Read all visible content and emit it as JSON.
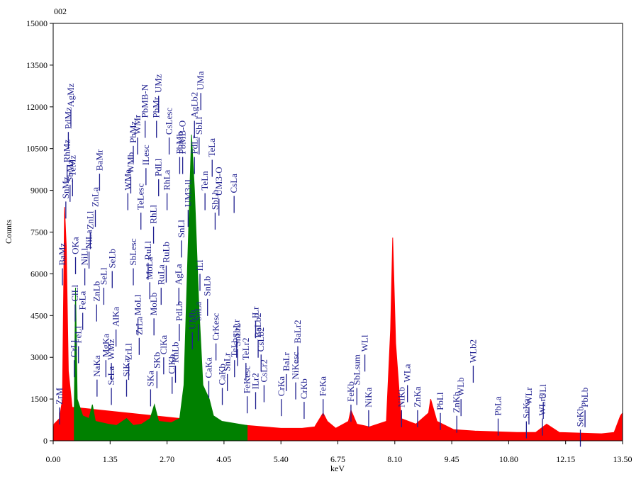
{
  "chart_data": {
    "type": "spectrum",
    "title": "002",
    "xlabel": "keV",
    "ylabel": "Counts",
    "xlim": [
      0,
      13.5
    ],
    "ylim": [
      0,
      15000
    ],
    "xticks": [
      {
        "value": 0,
        "label": "0.00"
      },
      {
        "value": 1.35,
        "label": "1.35"
      },
      {
        "value": 2.7,
        "label": "2.70"
      },
      {
        "value": 4.05,
        "label": "4.05"
      },
      {
        "value": 5.4,
        "label": "5.40"
      },
      {
        "value": 6.75,
        "label": "6.75"
      },
      {
        "value": 8.1,
        "label": "8.10"
      },
      {
        "value": 9.45,
        "label": "9.45"
      },
      {
        "value": 10.8,
        "label": "10.80"
      },
      {
        "value": 12.15,
        "label": "12.15"
      },
      {
        "value": 13.5,
        "label": "13.50"
      }
    ],
    "yticks": [
      0,
      1500,
      3000,
      4500,
      6000,
      7500,
      9000,
      10500,
      12000,
      13500,
      15000
    ],
    "series": [
      {
        "color": "#ff0000",
        "x": [
          0,
          0.02,
          0.15,
          0.22,
          0.27,
          0.31,
          0.36,
          0.45,
          0.5,
          4.6,
          5.0,
          5.4,
          5.9,
          6.2,
          6.4,
          6.5,
          6.7,
          7.0,
          7.06,
          7.2,
          7.5,
          7.9,
          8.0,
          8.05,
          8.12,
          8.25,
          8.6,
          8.9,
          8.95,
          9.1,
          9.5,
          10.0,
          11.0,
          11.44,
          11.7,
          12.0,
          13.0,
          13.3,
          13.45,
          13.5
        ],
        "values": [
          0,
          600,
          800,
          1500,
          8400,
          7000,
          2500,
          1200,
          1200,
          550,
          500,
          450,
          450,
          500,
          1000,
          700,
          450,
          700,
          1100,
          600,
          500,
          700,
          4000,
          7300,
          3500,
          800,
          600,
          1000,
          1500,
          700,
          400,
          350,
          300,
          300,
          600,
          300,
          250,
          300,
          900,
          1000
        ]
      },
      {
        "color": "#008000",
        "x": [
          0.5,
          0.53,
          0.57,
          0.7,
          0.85,
          0.93,
          1.0,
          1.3,
          1.5,
          1.74,
          1.9,
          2.1,
          2.3,
          2.4,
          2.5,
          2.8,
          3.0,
          3.1,
          3.2,
          3.28,
          3.35,
          3.45,
          3.55,
          3.7,
          3.8,
          4.0,
          4.2,
          4.4,
          4.6
        ],
        "values": [
          1200,
          5500,
          1500,
          900,
          800,
          1300,
          700,
          600,
          550,
          800,
          550,
          600,
          800,
          1300,
          700,
          650,
          800,
          2000,
          7000,
          11000,
          9000,
          5000,
          2000,
          1500,
          900,
          700,
          650,
          600,
          550
        ]
      }
    ],
    "marker_color": "#1f1f8f",
    "lines": [
      {
        "label": "ZrM",
        "x": 0.15,
        "y": 1300
      },
      {
        "label": "BaMz",
        "x": 0.22,
        "y": 6300
      },
      {
        "label": "SnMz",
        "x": 0.3,
        "y": 8700
      },
      {
        "label": "RhMz",
        "x": 0.33,
        "y": 10000
      },
      {
        "label": "PdMz",
        "x": 0.36,
        "y": 11200
      },
      {
        "label": "SbMz",
        "x": 0.4,
        "y": 9300
      },
      {
        "label": "AgMz",
        "x": 0.42,
        "y": 12000
      },
      {
        "label": "TeMz",
        "x": 0.46,
        "y": 9500
      },
      {
        "label": "CrLl",
        "x": 0.5,
        "y": 3000
      },
      {
        "label": "ClLl",
        "x": 0.52,
        "y": 5000
      },
      {
        "label": "OKa",
        "x": 0.53,
        "y": 6700
      },
      {
        "label": "FeLl",
        "x": 0.6,
        "y": 3500
      },
      {
        "label": "FeLa",
        "x": 0.7,
        "y": 4700
      },
      {
        "label": "NiLl",
        "x": 0.75,
        "y": 6300
      },
      {
        "label": "NiLa",
        "x": 0.85,
        "y": 6900
      },
      {
        "label": "ZnLl",
        "x": 0.88,
        "y": 7600
      },
      {
        "label": "ZnLa",
        "x": 1.0,
        "y": 8400
      },
      {
        "label": "ZnLb",
        "x": 1.03,
        "y": 5000
      },
      {
        "label": "NaKa",
        "x": 1.04,
        "y": 2300
      },
      {
        "label": "BaMr",
        "x": 1.1,
        "y": 9700
      },
      {
        "label": "SeLl",
        "x": 1.2,
        "y": 5600
      },
      {
        "label": "MgKa",
        "x": 1.25,
        "y": 3000
      },
      {
        "label": "SeLa",
        "x": 1.38,
        "y": 2000
      },
      {
        "label": "WMz",
        "x": 1.38,
        "y": 2900
      },
      {
        "label": "SeLb",
        "x": 1.4,
        "y": 6200
      },
      {
        "label": "AlKa",
        "x": 1.49,
        "y": 4100
      },
      {
        "label": "SiKa",
        "x": 1.74,
        "y": 2300
      },
      {
        "label": "WMa",
        "x": 1.77,
        "y": 9000
      },
      {
        "label": "ZrLl",
        "x": 1.79,
        "y": 2900
      },
      {
        "label": "WMb",
        "x": 1.84,
        "y": 9600
      },
      {
        "label": "SbLesc",
        "x": 1.9,
        "y": 6300
      },
      {
        "label": "PbMz",
        "x": 1.9,
        "y": 10700
      },
      {
        "label": "WMr",
        "x": 2.0,
        "y": 11000
      },
      {
        "label": "MoLl",
        "x": 2.01,
        "y": 4500
      },
      {
        "label": "ZrLa",
        "x": 2.04,
        "y": 3800
      },
      {
        "label": "TeLesc",
        "x": 2.08,
        "y": 8300
      },
      {
        "label": "PbMB-N",
        "x": 2.18,
        "y": 11600
      },
      {
        "label": "ILesc",
        "x": 2.2,
        "y": 9900
      },
      {
        "label": "RuLl",
        "x": 2.25,
        "y": 6500
      },
      {
        "label": "MoLa",
        "x": 2.29,
        "y": 5800
      },
      {
        "label": "SKa",
        "x": 2.31,
        "y": 1950
      },
      {
        "label": "RhLl",
        "x": 2.38,
        "y": 7800
      },
      {
        "label": "MoLb",
        "x": 2.39,
        "y": 4500
      },
      {
        "label": "PbMr",
        "x": 2.45,
        "y": 11600
      },
      {
        "label": "SKb",
        "x": 2.46,
        "y": 2600
      },
      {
        "label": "PdLl",
        "x": 2.5,
        "y": 9500
      },
      {
        "label": "UMz",
        "x": 2.5,
        "y": 12500
      },
      {
        "label": "RuLa",
        "x": 2.56,
        "y": 5600
      },
      {
        "label": "ClKa",
        "x": 2.62,
        "y": 3100
      },
      {
        "label": "RuLb",
        "x": 2.68,
        "y": 6400
      },
      {
        "label": "RhLa",
        "x": 2.7,
        "y": 9000
      },
      {
        "label": "CsLesc",
        "x": 2.75,
        "y": 11000
      },
      {
        "label": "ClKb",
        "x": 2.82,
        "y": 2400
      },
      {
        "label": "RhLb",
        "x": 2.9,
        "y": 2800
      },
      {
        "label": "AgLa",
        "x": 2.98,
        "y": 5600
      },
      {
        "label": "PdLb",
        "x": 2.99,
        "y": 4300
      },
      {
        "label": "PbMb",
        "x": 3.0,
        "y": 10300
      },
      {
        "label": "SnLl",
        "x": 3.04,
        "y": 7300
      },
      {
        "label": "PbMB-O",
        "x": 3.07,
        "y": 10300
      },
      {
        "label": "UM3-ll",
        "x": 3.2,
        "y": 8400
      },
      {
        "label": "UMb",
        "x": 3.3,
        "y": 4000
      },
      {
        "label": "PdLr",
        "x": 3.35,
        "y": 10300
      },
      {
        "label": "AgLb2",
        "x": 3.35,
        "y": 11600
      },
      {
        "label": "SnLa",
        "x": 3.44,
        "y": 4300
      },
      {
        "label": "SbLl",
        "x": 3.46,
        "y": 11000
      },
      {
        "label": "ILl",
        "x": 3.48,
        "y": 6100
      },
      {
        "label": "UMa",
        "x": 3.5,
        "y": 12600
      },
      {
        "label": "TeLn",
        "x": 3.6,
        "y": 9000
      },
      {
        "label": "SnLb",
        "x": 3.66,
        "y": 5200
      },
      {
        "label": "CaKa",
        "x": 3.69,
        "y": 2250
      },
      {
        "label": "TeLa",
        "x": 3.77,
        "y": 10200
      },
      {
        "label": "SbLb",
        "x": 3.84,
        "y": 8300
      },
      {
        "label": "CrKesc",
        "x": 3.86,
        "y": 3600
      },
      {
        "label": "UM3-O",
        "x": 3.93,
        "y": 8800
      },
      {
        "label": "CaKb",
        "x": 4.01,
        "y": 2000
      },
      {
        "label": "SnLr",
        "x": 4.13,
        "y": 2500
      },
      {
        "label": "CsLa",
        "x": 4.29,
        "y": 8900
      },
      {
        "label": "TeLb",
        "x": 4.3,
        "y": 3000
      },
      {
        "label": "SbLr",
        "x": 4.35,
        "y": 3700
      },
      {
        "label": "SnLr2",
        "x": 4.37,
        "y": 3400
      },
      {
        "label": "TeLr2",
        "x": 4.57,
        "y": 2900
      },
      {
        "label": "FeKesc",
        "x": 4.6,
        "y": 1700
      },
      {
        "label": "ILr",
        "x": 4.8,
        "y": 4400
      },
      {
        "label": "ILr2",
        "x": 4.8,
        "y": 1850
      },
      {
        "label": "BaLb2",
        "x": 4.86,
        "y": 3700
      },
      {
        "label": "CsLb2",
        "x": 4.93,
        "y": 3200
      },
      {
        "label": "CsLr2",
        "x": 5.0,
        "y": 2100
      },
      {
        "label": "CrKa",
        "x": 5.41,
        "y": 1600
      },
      {
        "label": "BaLr",
        "x": 5.53,
        "y": 2500
      },
      {
        "label": "NiKesc",
        "x": 5.75,
        "y": 2200
      },
      {
        "label": "BaLr2",
        "x": 5.8,
        "y": 3500
      },
      {
        "label": "CrKb",
        "x": 5.95,
        "y": 1500
      },
      {
        "label": "FeKa",
        "x": 6.4,
        "y": 1600
      },
      {
        "label": "FeKb",
        "x": 7.06,
        "y": 1400
      },
      {
        "label": "SbLsum",
        "x": 7.2,
        "y": 2000
      },
      {
        "label": "WLl",
        "x": 7.39,
        "y": 3200
      },
      {
        "label": "NiKa",
        "x": 7.48,
        "y": 1200
      },
      {
        "label": "NiKb",
        "x": 8.26,
        "y": 1200
      },
      {
        "label": "WLa",
        "x": 8.4,
        "y": 2100
      },
      {
        "label": "ZnKa",
        "x": 8.64,
        "y": 1200
      },
      {
        "label": "PbLl",
        "x": 9.18,
        "y": 1100
      },
      {
        "label": "ZnKb",
        "x": 9.57,
        "y": 1000
      },
      {
        "label": "WLb",
        "x": 9.67,
        "y": 1600
      },
      {
        "label": "WLb2",
        "x": 9.96,
        "y": 2800
      },
      {
        "label": "PbLa",
        "x": 10.55,
        "y": 900
      },
      {
        "label": "SeKa",
        "x": 11.22,
        "y": 800
      },
      {
        "label": "WLr",
        "x": 11.28,
        "y": 1300
      },
      {
        "label": "WLr3",
        "x": 11.6,
        "y": 900
      },
      {
        "label": "ULl",
        "x": 11.62,
        "y": 1500
      },
      {
        "label": "SeKb",
        "x": 12.5,
        "y": 500
      },
      {
        "label": "PbLb",
        "x": 12.61,
        "y": 1200
      }
    ]
  }
}
